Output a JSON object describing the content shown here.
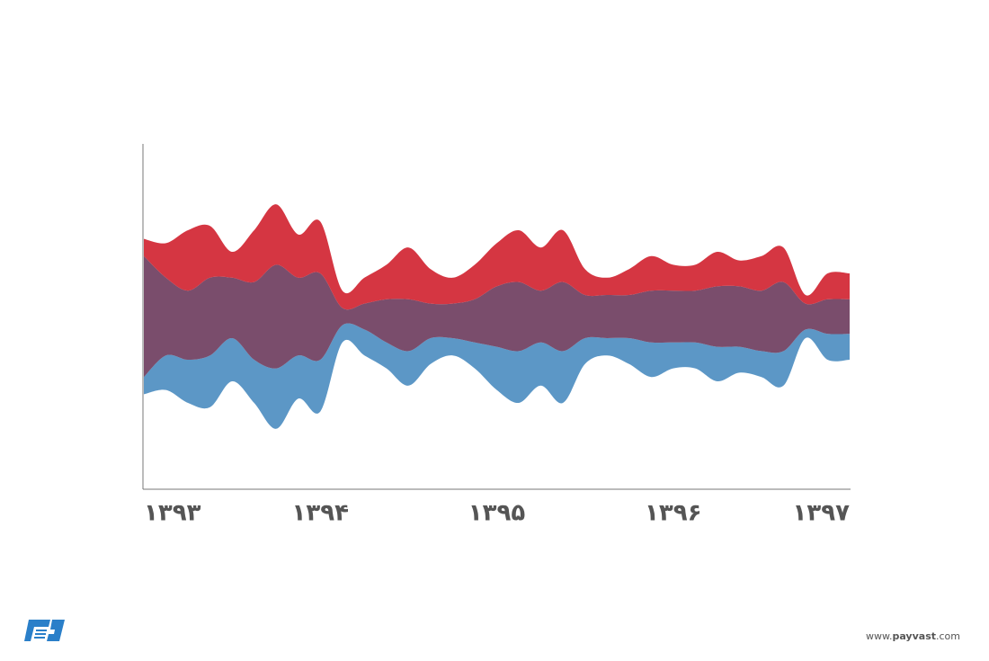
{
  "chart_data": {
    "type": "streamgraph",
    "x": [
      1393,
      1393.125,
      1393.25,
      1393.375,
      1393.5,
      1393.625,
      1393.75,
      1393.875,
      1394,
      1394.125,
      1394.25,
      1394.375,
      1394.5,
      1394.625,
      1394.75,
      1394.875,
      1395,
      1395.125,
      1395.25,
      1395.375,
      1395.5,
      1395.625,
      1395.75,
      1395.875,
      1396,
      1396.125,
      1396.25,
      1396.375,
      1396.5,
      1396.625,
      1396.75,
      1396.875,
      1397
    ],
    "series": [
      {
        "name": "red",
        "color": "#d0202e",
        "values": [
          2,
          4,
          7,
          6,
          3,
          6,
          7,
          5,
          6,
          2,
          3,
          4,
          6,
          4,
          3,
          4,
          5,
          6,
          5,
          6,
          3,
          2,
          3,
          4,
          3,
          3,
          4,
          3,
          4,
          4,
          1,
          3,
          3
        ]
      },
      {
        "name": "purple",
        "color": "#6b3a5c",
        "values": [
          14,
          9,
          8,
          9,
          7,
          9,
          12,
          9,
          10,
          2,
          3,
          5,
          6,
          4,
          4,
          5,
          7,
          8,
          6,
          8,
          5,
          5,
          5,
          6,
          6,
          6,
          7,
          7,
          7,
          8,
          3,
          4,
          4
        ]
      },
      {
        "name": "blue",
        "color": "#4a8cc0",
        "values": [
          2,
          4,
          5,
          6,
          5,
          5,
          7,
          5,
          6,
          2,
          3,
          3,
          4,
          3,
          2,
          3,
          5,
          6,
          5,
          6,
          3,
          2,
          3,
          4,
          3,
          3,
          4,
          3,
          3,
          4,
          1,
          3,
          3
        ]
      }
    ],
    "xlim": [
      1393,
      1397
    ],
    "xticks": [
      {
        "value": 1393,
        "label": "۱۳۹۳"
      },
      {
        "value": 1394,
        "label": "۱۳۹۴"
      },
      {
        "value": 1395,
        "label": "۱۳۹۵"
      },
      {
        "value": 1396,
        "label": "۱۳۹۶"
      },
      {
        "value": 1397,
        "label": "۱۳۹۷"
      }
    ],
    "ylim": [
      -20,
      20
    ]
  },
  "footer": {
    "prefix": "www.",
    "brand": "payvast",
    "suffix": ".com"
  }
}
